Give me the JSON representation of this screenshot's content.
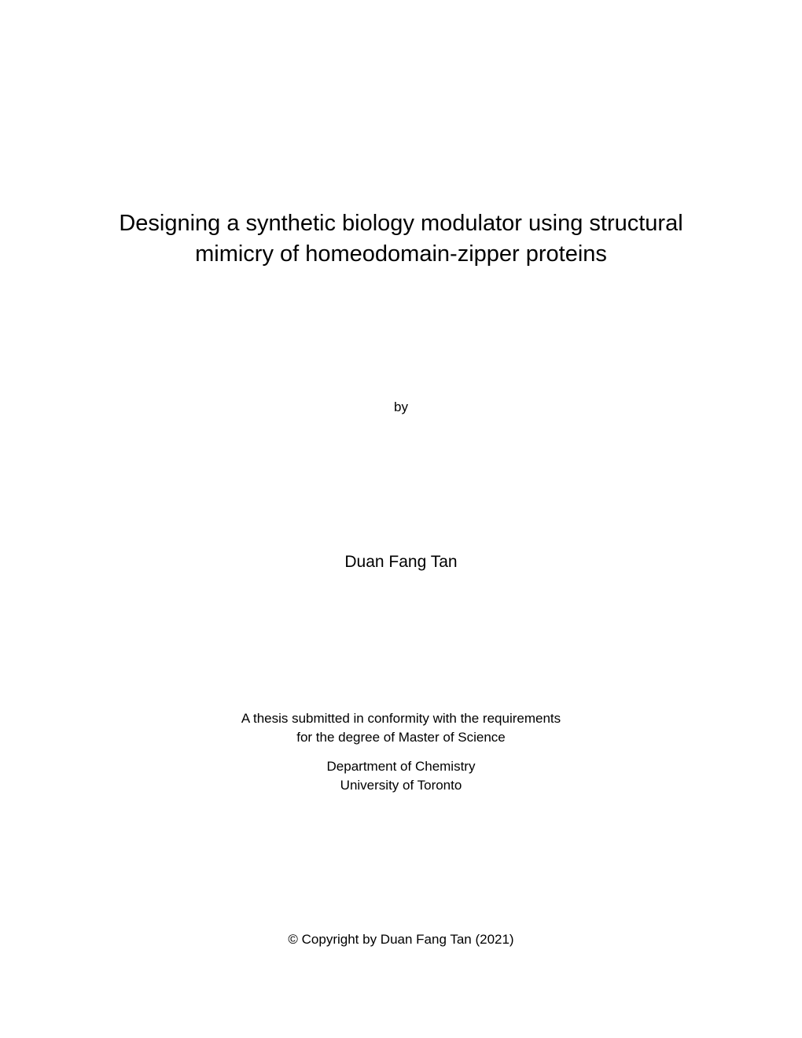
{
  "title_line1": "Designing a synthetic biology modulator using structural",
  "title_line2": "mimicry of homeodomain-zipper proteins",
  "by_label": "by",
  "author": "Duan Fang Tan",
  "thesis_line1": "A thesis submitted in conformity with the requirements",
  "thesis_line2": "for the degree of Master of Science",
  "department_line1": "Department of Chemistry",
  "department_line2": "University of Toronto",
  "copyright": "© Copyright by Duan Fang Tan (2021)"
}
